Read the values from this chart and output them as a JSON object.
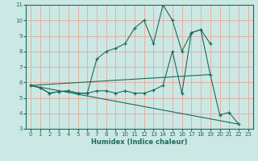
{
  "title": "",
  "xlabel": "Humidex (Indice chaleur)",
  "xlim": [
    -0.5,
    23.5
  ],
  "ylim": [
    3,
    11
  ],
  "yticks": [
    3,
    4,
    5,
    6,
    7,
    8,
    9,
    10,
    11
  ],
  "xticks": [
    0,
    1,
    2,
    3,
    4,
    5,
    6,
    7,
    8,
    9,
    10,
    11,
    12,
    13,
    14,
    15,
    16,
    17,
    18,
    19,
    20,
    21,
    22,
    23
  ],
  "bg_color": "#cce8e4",
  "grid_color": "#e8a898",
  "line_color": "#1a6b5e",
  "line1_x": [
    0,
    1,
    2,
    3,
    4,
    5,
    6,
    7,
    8,
    9,
    10,
    11,
    12,
    13,
    14,
    15,
    16,
    17,
    18,
    19,
    20,
    21,
    22
  ],
  "line1_y": [
    5.8,
    5.65,
    5.3,
    5.4,
    5.45,
    5.3,
    5.3,
    5.45,
    5.45,
    5.3,
    5.45,
    5.3,
    5.3,
    5.5,
    5.8,
    8.0,
    5.3,
    9.2,
    9.4,
    6.5,
    3.9,
    4.05,
    3.3
  ],
  "line2_x": [
    0,
    1,
    2,
    3,
    4,
    5,
    6,
    7,
    8,
    9,
    10,
    11,
    12,
    13,
    14,
    15,
    16,
    17,
    18,
    19
  ],
  "line2_y": [
    5.8,
    5.65,
    5.3,
    5.4,
    5.45,
    5.3,
    5.3,
    7.5,
    8.0,
    8.2,
    8.5,
    9.5,
    10.0,
    8.5,
    11.0,
    10.0,
    8.0,
    9.2,
    9.4,
    8.5
  ],
  "line3_x": [
    0,
    22
  ],
  "line3_y": [
    5.8,
    3.3
  ],
  "line4_x": [
    0,
    19
  ],
  "line4_y": [
    5.8,
    6.5
  ]
}
